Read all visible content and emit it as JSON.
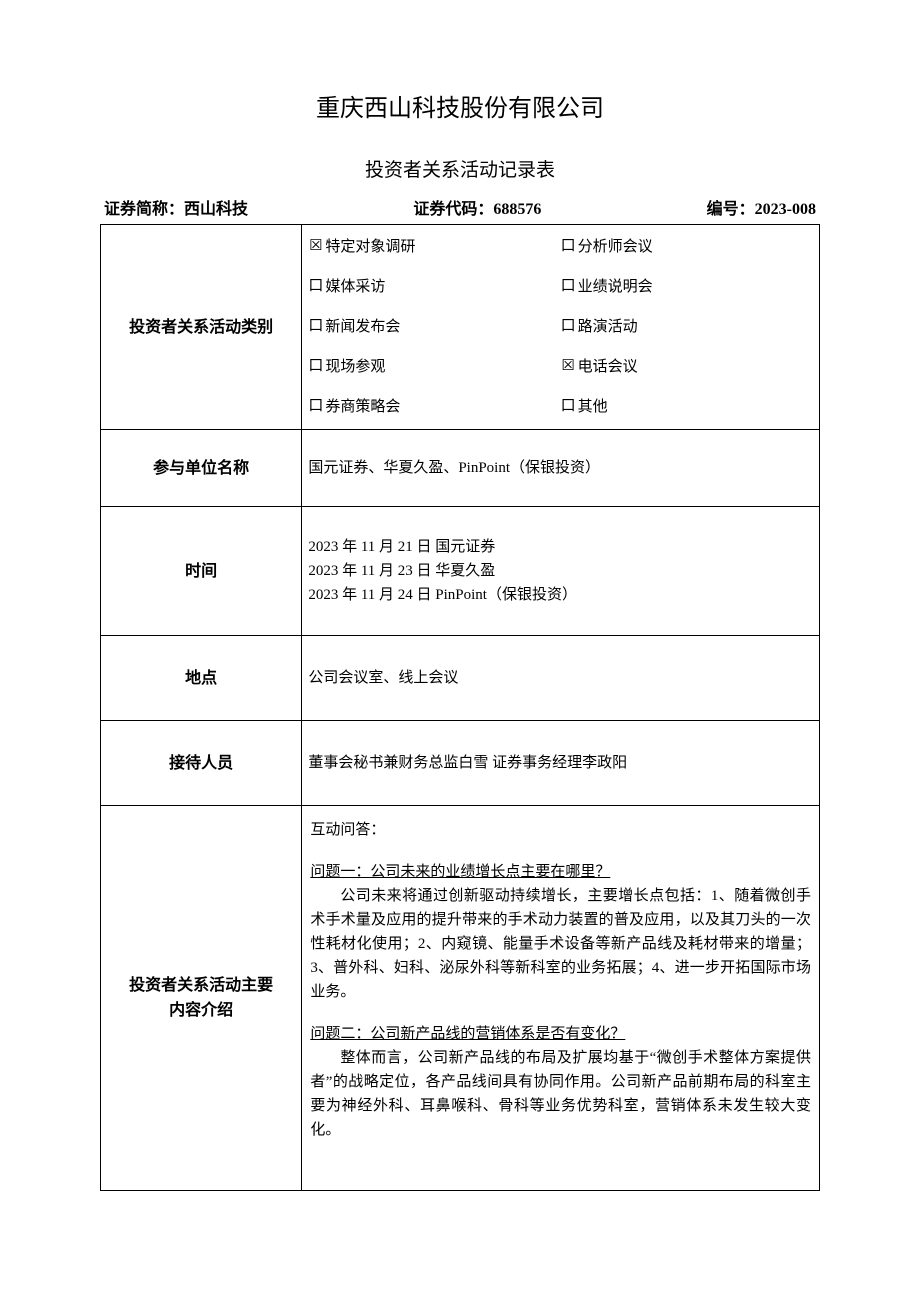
{
  "company_name": "重庆西山科技股份有限公司",
  "doc_title": "投资者关系活动记录表",
  "header": {
    "short_name_label": "证券简称：",
    "short_name": "西山科技",
    "code_label": "证券代码：",
    "code": "688576",
    "serial_label": "编号：",
    "serial": "2023-008"
  },
  "rows": {
    "category_label": "投资者关系活动类别",
    "participants_label": "参与单位名称",
    "participants_value": "国元证券、华夏久盈、PinPoint（保银投资）",
    "time_label": "时间",
    "time_lines": [
      "2023 年 11 月 21 日 国元证券",
      "2023 年 11 月 23 日 华夏久盈",
      "2023 年 11 月 24 日 PinPoint（保银投资）"
    ],
    "location_label": "地点",
    "location_value": "公司会议室、线上会议",
    "staff_label": "接待人员",
    "staff_value": "董事会秘书兼财务总监白雪 证券事务经理李政阳",
    "content_label_line1": "投资者关系活动主要",
    "content_label_line2": "内容介绍"
  },
  "categories": [
    {
      "label": "特定对象调研",
      "checked": true
    },
    {
      "label": "分析师会议",
      "checked": false
    },
    {
      "label": "媒体采访",
      "checked": false
    },
    {
      "label": "业绩说明会",
      "checked": false
    },
    {
      "label": "新闻发布会",
      "checked": false
    },
    {
      "label": "路演活动",
      "checked": false
    },
    {
      "label": "现场参观",
      "checked": false
    },
    {
      "label": "电话会议",
      "checked": true
    },
    {
      "label": "券商策略会",
      "checked": false
    },
    {
      "label": "其他",
      "checked": false
    }
  ],
  "qa": {
    "section_title": "互动问答：",
    "q1": "问题一：公司未来的业绩增长点主要在哪里？",
    "a1": "公司未来将通过创新驱动持续增长，主要增长点包括：1、随着微创手术手术量及应用的提升带来的手术动力装置的普及应用，以及其刀头的一次性耗材化使用；2、内窥镜、能量手术设备等新产品线及耗材带来的增量；3、普外科、妇科、泌尿外科等新科室的业务拓展；4、进一步开拓国际市场业务。",
    "q2": "问题二：公司新产品线的营销体系是否有变化？",
    "a2": "整体而言，公司新产品线的布局及扩展均基于“微创手术整体方案提供者”的战略定位，各产品线间具有协同作用。公司新产品前期布局的科室主要为神经外科、耳鼻喉科、骨科等业务优势科室，营销体系未发生较大变化。"
  },
  "checkbox_glyphs": {
    "checked": "☒",
    "unchecked": "口"
  }
}
